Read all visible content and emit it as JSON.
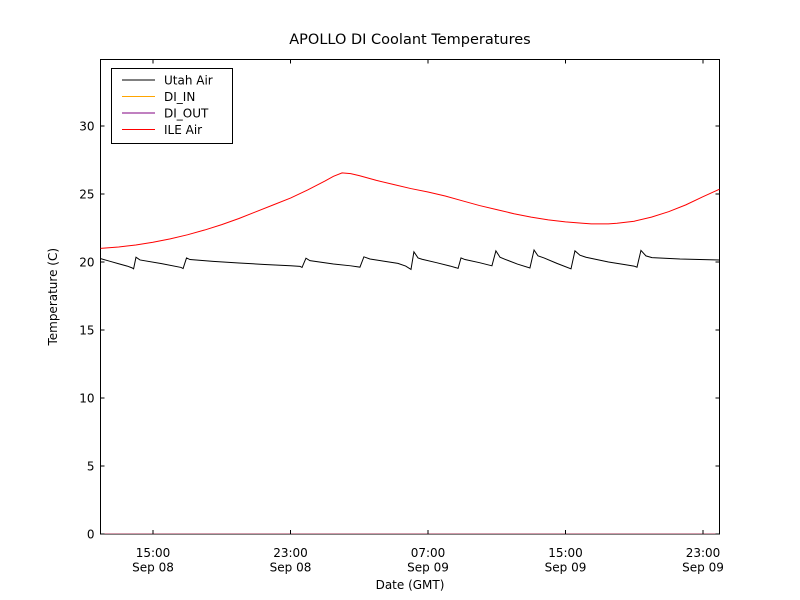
{
  "figure": {
    "background": "#ffffff",
    "frame_color": "#000000",
    "text_color": "#000000"
  },
  "chart_data": {
    "type": "line",
    "title": "APOLLO DI Coolant Temperatures",
    "xlabel": "Date (GMT)",
    "ylabel": "Temperature (C)",
    "grid": false,
    "legend_position": "upper left",
    "xlim_hours": [
      11.945,
      47.96
    ],
    "ylim": [
      0,
      34.89
    ],
    "y_ticks": [
      0,
      5,
      10,
      15,
      20,
      25,
      30
    ],
    "x_ticks": [
      {
        "hour": 15,
        "time": "15:00",
        "date": "Sep 08"
      },
      {
        "hour": 23,
        "time": "23:00",
        "date": "Sep 08"
      },
      {
        "hour": 31,
        "time": "07:00",
        "date": "Sep 09"
      },
      {
        "hour": 39,
        "time": "15:00",
        "date": "Sep 09"
      },
      {
        "hour": 47,
        "time": "23:00",
        "date": "Sep 09"
      }
    ],
    "series": [
      {
        "name": "Utah Air",
        "color": "#000000",
        "opacity": 1,
        "points": [
          [
            11.95,
            20.25
          ],
          [
            12.5,
            20.05
          ],
          [
            13.0,
            19.87
          ],
          [
            13.5,
            19.7
          ],
          [
            13.78,
            19.57
          ],
          [
            13.87,
            19.5
          ],
          [
            14.01,
            20.35
          ],
          [
            14.24,
            20.15
          ],
          [
            15.5,
            19.88
          ],
          [
            16.63,
            19.6
          ],
          [
            16.75,
            19.52
          ],
          [
            16.95,
            20.3
          ],
          [
            17.15,
            20.18
          ],
          [
            18.5,
            20.05
          ],
          [
            20,
            19.93
          ],
          [
            21.5,
            19.82
          ],
          [
            23,
            19.72
          ],
          [
            23.55,
            19.68
          ],
          [
            23.67,
            19.6
          ],
          [
            23.9,
            20.28
          ],
          [
            24.13,
            20.1
          ],
          [
            25.5,
            19.85
          ],
          [
            26.5,
            19.72
          ],
          [
            27.04,
            19.62
          ],
          [
            27.27,
            20.38
          ],
          [
            27.62,
            20.22
          ],
          [
            28.5,
            20.05
          ],
          [
            29.25,
            19.9
          ],
          [
            29.7,
            19.7
          ],
          [
            30.01,
            19.45
          ],
          [
            30.18,
            20.75
          ],
          [
            30.42,
            20.3
          ],
          [
            30.65,
            20.2
          ],
          [
            31.5,
            19.95
          ],
          [
            32.3,
            19.7
          ],
          [
            32.63,
            19.58
          ],
          [
            32.75,
            19.53
          ],
          [
            32.92,
            20.3
          ],
          [
            33.15,
            20.18
          ],
          [
            34,
            19.95
          ],
          [
            34.72,
            19.72
          ],
          [
            34.95,
            20.82
          ],
          [
            35.19,
            20.35
          ],
          [
            35.48,
            20.2
          ],
          [
            36.2,
            19.85
          ],
          [
            36.93,
            19.56
          ],
          [
            37.17,
            20.88
          ],
          [
            37.4,
            20.45
          ],
          [
            37.75,
            20.3
          ],
          [
            38.5,
            19.9
          ],
          [
            39.32,
            19.5
          ],
          [
            39.55,
            20.82
          ],
          [
            39.84,
            20.5
          ],
          [
            40.19,
            20.35
          ],
          [
            41.5,
            20.0
          ],
          [
            42.5,
            19.8
          ],
          [
            42.98,
            19.7
          ],
          [
            43.16,
            19.62
          ],
          [
            43.39,
            20.85
          ],
          [
            43.68,
            20.45
          ],
          [
            44.03,
            20.32
          ],
          [
            45.66,
            20.22
          ],
          [
            47.96,
            20.15
          ]
        ]
      },
      {
        "name": "DI_IN",
        "color": "#ffa500",
        "opacity": 0.9,
        "points": [
          [
            11.945,
            0
          ],
          [
            47.96,
            0
          ]
        ]
      },
      {
        "name": "DI_OUT",
        "color": "#800080",
        "opacity": 0.65,
        "points": [
          [
            11.945,
            0
          ],
          [
            47.96,
            0
          ]
        ]
      },
      {
        "name": "ILE Air",
        "color": "#ff0000",
        "opacity": 1,
        "points": [
          [
            11.95,
            21.0
          ],
          [
            13,
            21.1
          ],
          [
            14,
            21.25
          ],
          [
            15,
            21.45
          ],
          [
            16,
            21.7
          ],
          [
            17,
            22.0
          ],
          [
            18,
            22.35
          ],
          [
            19,
            22.75
          ],
          [
            20,
            23.2
          ],
          [
            21,
            23.7
          ],
          [
            22,
            24.2
          ],
          [
            23,
            24.7
          ],
          [
            24,
            25.3
          ],
          [
            25,
            25.95
          ],
          [
            25.5,
            26.3
          ],
          [
            26,
            26.55
          ],
          [
            26.5,
            26.5
          ],
          [
            27,
            26.35
          ],
          [
            28,
            26.0
          ],
          [
            29,
            25.7
          ],
          [
            30,
            25.4
          ],
          [
            31,
            25.15
          ],
          [
            32,
            24.85
          ],
          [
            33,
            24.5
          ],
          [
            34,
            24.15
          ],
          [
            35,
            23.85
          ],
          [
            36,
            23.55
          ],
          [
            37,
            23.3
          ],
          [
            38,
            23.1
          ],
          [
            39,
            22.95
          ],
          [
            40,
            22.85
          ],
          [
            40.5,
            22.8
          ],
          [
            41.5,
            22.8
          ],
          [
            42,
            22.85
          ],
          [
            43,
            23.0
          ],
          [
            44,
            23.3
          ],
          [
            45,
            23.7
          ],
          [
            46,
            24.2
          ],
          [
            47,
            24.8
          ],
          [
            47.96,
            25.35
          ]
        ]
      }
    ]
  }
}
